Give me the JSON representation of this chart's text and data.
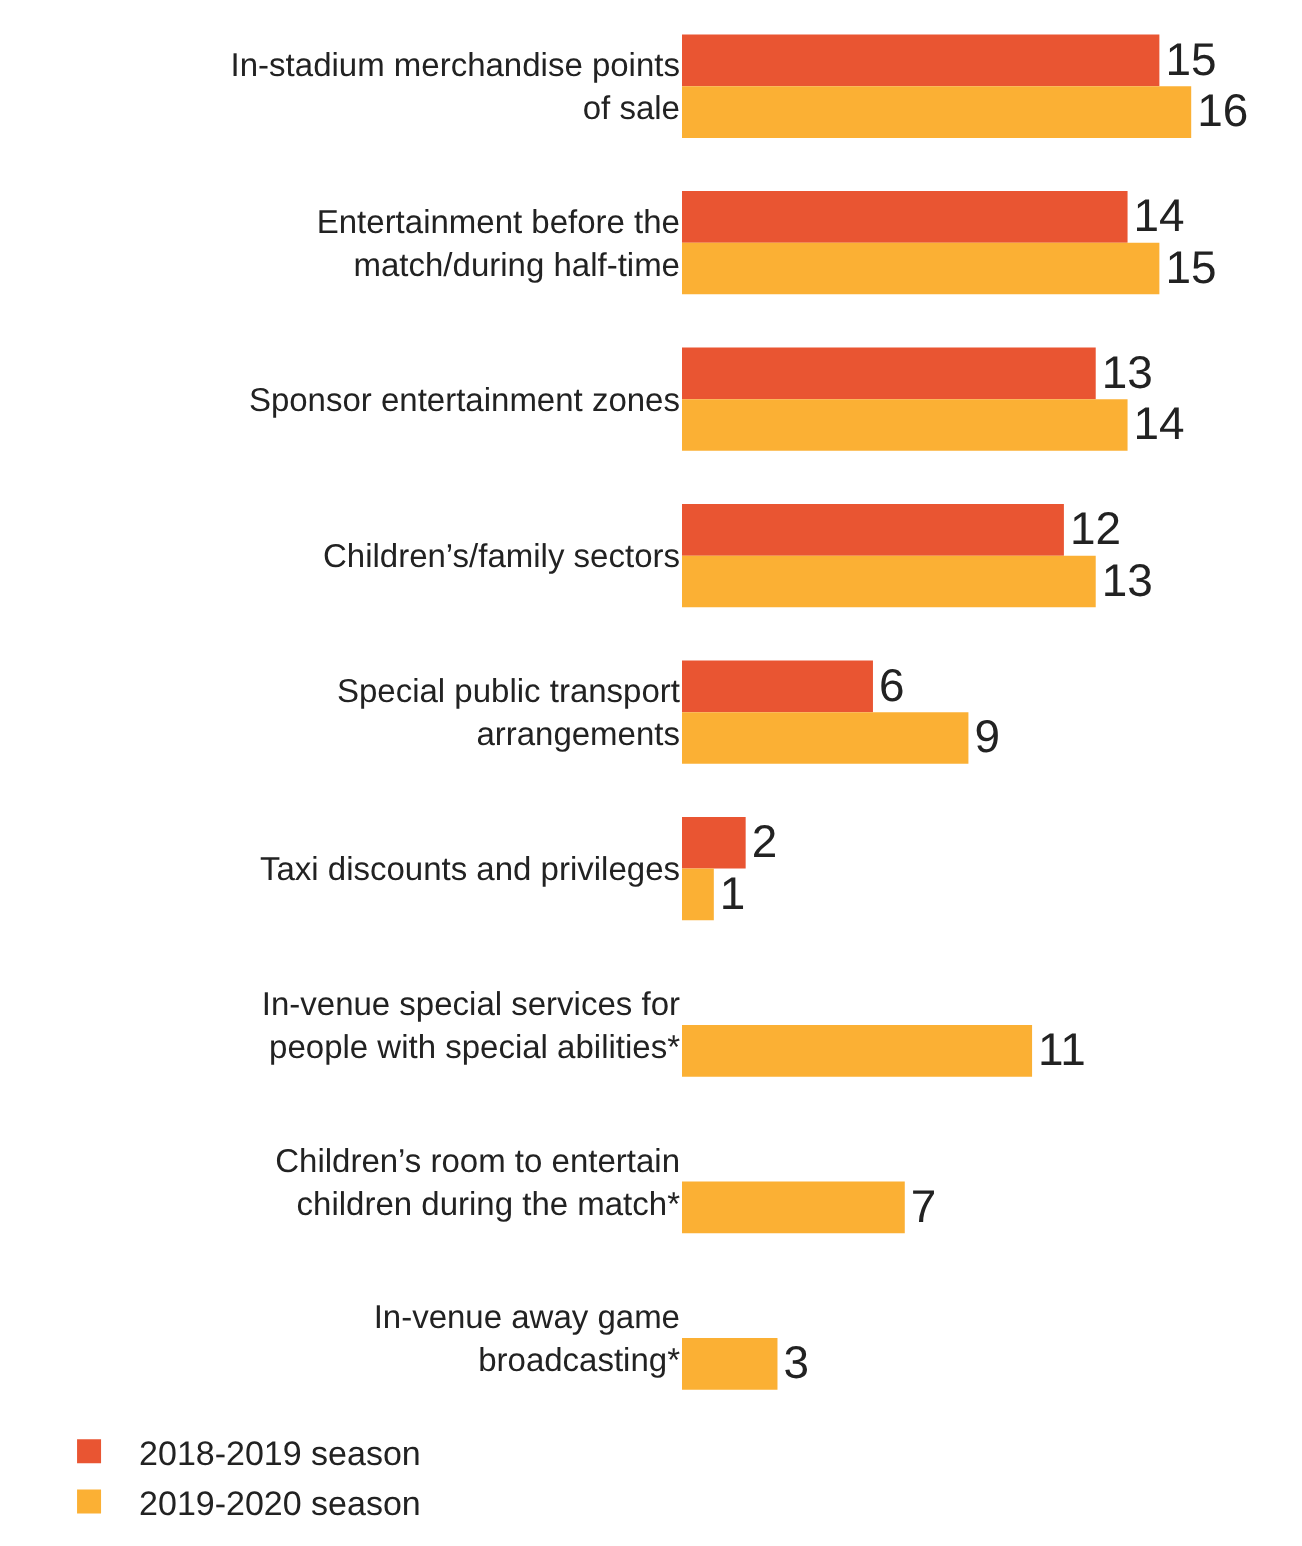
{
  "chart_data": {
    "type": "bar",
    "orientation": "horizontal",
    "categories": [
      "In-stadium merchandise points of sale",
      "Entertainment before the match/during half-time",
      "Sponsor entertainment zones",
      "Children’s/family sectors",
      "Special public transport arrangements",
      "Taxi discounts and privileges",
      "In-venue special services for people with special abilities*",
      "Children’s room to entertain children during the match*",
      "In-venue away game broadcasting*"
    ],
    "series": [
      {
        "name": "2018-2019 season",
        "color": "#e95532",
        "values": [
          15,
          14,
          13,
          12,
          6,
          2,
          null,
          null,
          null
        ]
      },
      {
        "name": "2019-2020 season",
        "color": "#fbb034",
        "values": [
          16,
          15,
          14,
          13,
          9,
          1,
          11,
          7,
          3
        ]
      }
    ],
    "data_labels": true,
    "legend": "bottom",
    "grid": false
  }
}
